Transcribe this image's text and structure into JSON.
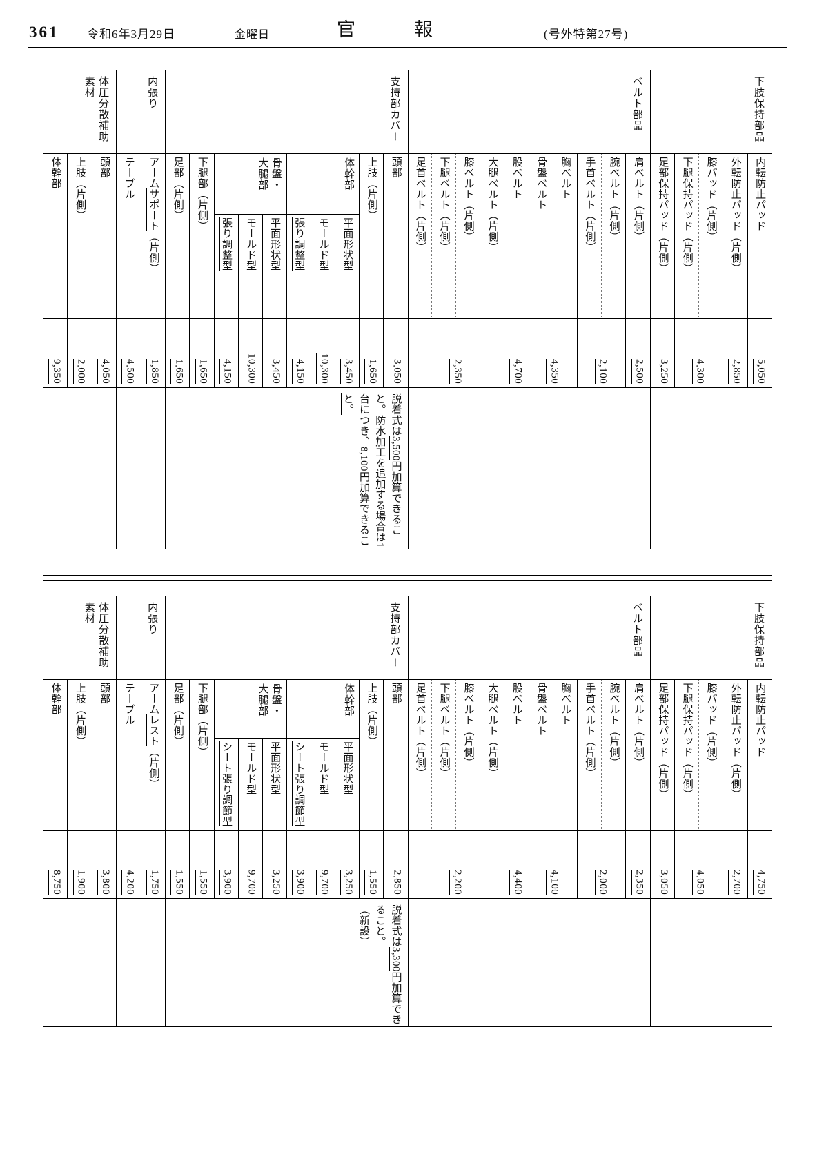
{
  "header": {
    "page_number": "361",
    "date": "令和6年3月29日",
    "weekday": "金曜日",
    "publication": "官報",
    "issue": "(号外特第27号)"
  },
  "tables": [
    {
      "name": "revised-price-table",
      "groups": [
        {
          "category": "下肢保持部品",
          "sections": [
            {
              "units": [
                {
                  "items": [
                    "内転防止パッド"
                  ],
                  "price": "5,050"
                },
                {
                  "items": [
                    "外転防止パッド（片側）"
                  ],
                  "price": "2,850"
                },
                {
                  "items": [
                    "膝パッド（片側）",
                    "下腿保持パッド（片側）"
                  ],
                  "price": "4,300"
                },
                {
                  "items": [
                    "足部保持パッド（片側）"
                  ],
                  "price": "3,250"
                }
              ]
            }
          ],
          "note": []
        },
        {
          "category": "ベルト部品",
          "sections": [
            {
              "units": [
                {
                  "items": [
                    "肩ベルト（片側）"
                  ],
                  "price": "2,500"
                },
                {
                  "items": [
                    "腕ベルト（片側）",
                    "手首ベルト（片側）"
                  ],
                  "price": "2,100"
                },
                {
                  "items": [
                    "胸ベルト",
                    "骨盤ベルト"
                  ],
                  "price": "4,350"
                },
                {
                  "items": [
                    "股ベルト"
                  ],
                  "price": "4,700"
                },
                {
                  "items": [
                    "大腿ベルト（片側）",
                    "膝ベルト（片側）",
                    "下腿ベルト（片側）",
                    "足首ベルト（片側）"
                  ],
                  "price": "2,350"
                }
              ]
            }
          ],
          "note": []
        },
        {
          "category": "支持部カバー",
          "sections": [
            {
              "units": [
                {
                  "items": [
                    "頭部"
                  ],
                  "price": "3,050"
                },
                {
                  "items": [
                    "上肢（片側）"
                  ],
                  "price": "1,650"
                }
              ]
            },
            {
              "parent": "体幹部",
              "units": [
                {
                  "items": [
                    "平面形状型"
                  ],
                  "price": "3,450"
                },
                {
                  "items": [
                    "モールド型"
                  ],
                  "price": "10,300"
                },
                {
                  "items": [
                    "《張り調整型》"
                  ],
                  "price": "4,150"
                }
              ]
            },
            {
              "parent": "骨盤・\n大腿部",
              "units": [
                {
                  "items": [
                    "平面形状型"
                  ],
                  "price": "3,450"
                },
                {
                  "items": [
                    "モールド型"
                  ],
                  "price": "10,300"
                },
                {
                  "items": [
                    "《張り調整型》"
                  ],
                  "price": "4,150"
                }
              ]
            },
            {
              "units": [
                {
                  "items": [
                    "下腿部（片側）"
                  ],
                  "price": "1,650"
                },
                {
                  "items": [
                    "足部（片側）"
                  ],
                  "price": "1,650"
                }
              ]
            }
          ],
          "note": [
            "脱着式は《3,500》円加算できること。《防水加工を追加する場合は1台につき、8,100円加算できること。》"
          ]
        },
        {
          "category": "内張り",
          "sections": [
            {
              "units": [
                {
                  "items": [
                    "アーム《サポート》（片側）"
                  ],
                  "price": "1,850"
                },
                {
                  "items": [
                    "テーブル"
                  ],
                  "price": "4,500"
                }
              ]
            }
          ],
          "note": []
        },
        {
          "category": "体圧分散補助\n素材",
          "sections": [
            {
              "units": [
                {
                  "items": [
                    "頭部"
                  ],
                  "price": "4,050"
                },
                {
                  "items": [
                    "上肢（片側）"
                  ],
                  "price": "2,000"
                },
                {
                  "items": [
                    "体幹部"
                  ],
                  "price": "9,350"
                }
              ]
            }
          ],
          "note": []
        }
      ]
    },
    {
      "name": "previous-price-table",
      "groups": [
        {
          "category": "下肢保持部品",
          "sections": [
            {
              "units": [
                {
                  "items": [
                    "内転防止パッド"
                  ],
                  "price": "4,750"
                },
                {
                  "items": [
                    "外転防止パッド（片側）"
                  ],
                  "price": "2,700"
                },
                {
                  "items": [
                    "膝パッド（片側）",
                    "下腿保持パッド（片側）"
                  ],
                  "price": "4,050"
                },
                {
                  "items": [
                    "足部保持パッド（片側）"
                  ],
                  "price": "3,050"
                }
              ]
            }
          ],
          "note": []
        },
        {
          "category": "ベルト部品",
          "sections": [
            {
              "units": [
                {
                  "items": [
                    "肩ベルト（片側）"
                  ],
                  "price": "2,350"
                },
                {
                  "items": [
                    "腕ベルト（片側）",
                    "手首ベルト（片側）"
                  ],
                  "price": "2,000"
                },
                {
                  "items": [
                    "胸ベルト",
                    "骨盤ベルト"
                  ],
                  "price": "4,100"
                },
                {
                  "items": [
                    "股ベルト"
                  ],
                  "price": "4,400"
                },
                {
                  "items": [
                    "大腿ベルト（片側）",
                    "膝ベルト（片側）",
                    "下腿ベルト（片側）",
                    "足首ベルト（片側）"
                  ],
                  "price": "2,200"
                }
              ]
            }
          ],
          "note": []
        },
        {
          "category": "支持部カバー",
          "sections": [
            {
              "units": [
                {
                  "items": [
                    "頭部"
                  ],
                  "price": "2,850"
                },
                {
                  "items": [
                    "上肢（片側）"
                  ],
                  "price": "1,550"
                }
              ]
            },
            {
              "parent": "体幹部",
              "units": [
                {
                  "items": [
                    "平面形状型"
                  ],
                  "price": "3,250"
                },
                {
                  "items": [
                    "モールド型"
                  ],
                  "price": "9,700"
                },
                {
                  "items": [
                    "《シート張り調節型》"
                  ],
                  "price": "3,900"
                }
              ]
            },
            {
              "parent": "骨盤・\n大腿部",
              "units": [
                {
                  "items": [
                    "平面形状型"
                  ],
                  "price": "3,250"
                },
                {
                  "items": [
                    "モールド型"
                  ],
                  "price": "9,700"
                },
                {
                  "items": [
                    "《シート張り調節型》"
                  ],
                  "price": "3,900"
                }
              ]
            },
            {
              "units": [
                {
                  "items": [
                    "下腿部（片側）"
                  ],
                  "price": "1,550"
                },
                {
                  "items": [
                    "足部（片側）"
                  ],
                  "price": "1,550"
                }
              ]
            }
          ],
          "note": [
            "脱着式は《3,300》円加算できること。",
            "（新設）"
          ]
        },
        {
          "category": "内張り",
          "sections": [
            {
              "units": [
                {
                  "items": [
                    "アーム《レスト》（片側）"
                  ],
                  "price": "1,750"
                },
                {
                  "items": [
                    "テーブル"
                  ],
                  "price": "4,200"
                }
              ]
            }
          ],
          "note": []
        },
        {
          "category": "体圧分散補助\n素材",
          "sections": [
            {
              "units": [
                {
                  "items": [
                    "頭部"
                  ],
                  "price": "3,800"
                },
                {
                  "items": [
                    "上肢（片側）"
                  ],
                  "price": "1,900"
                },
                {
                  "items": [
                    "体幹部"
                  ],
                  "price": "8,750"
                }
              ]
            }
          ],
          "note": []
        }
      ]
    }
  ]
}
